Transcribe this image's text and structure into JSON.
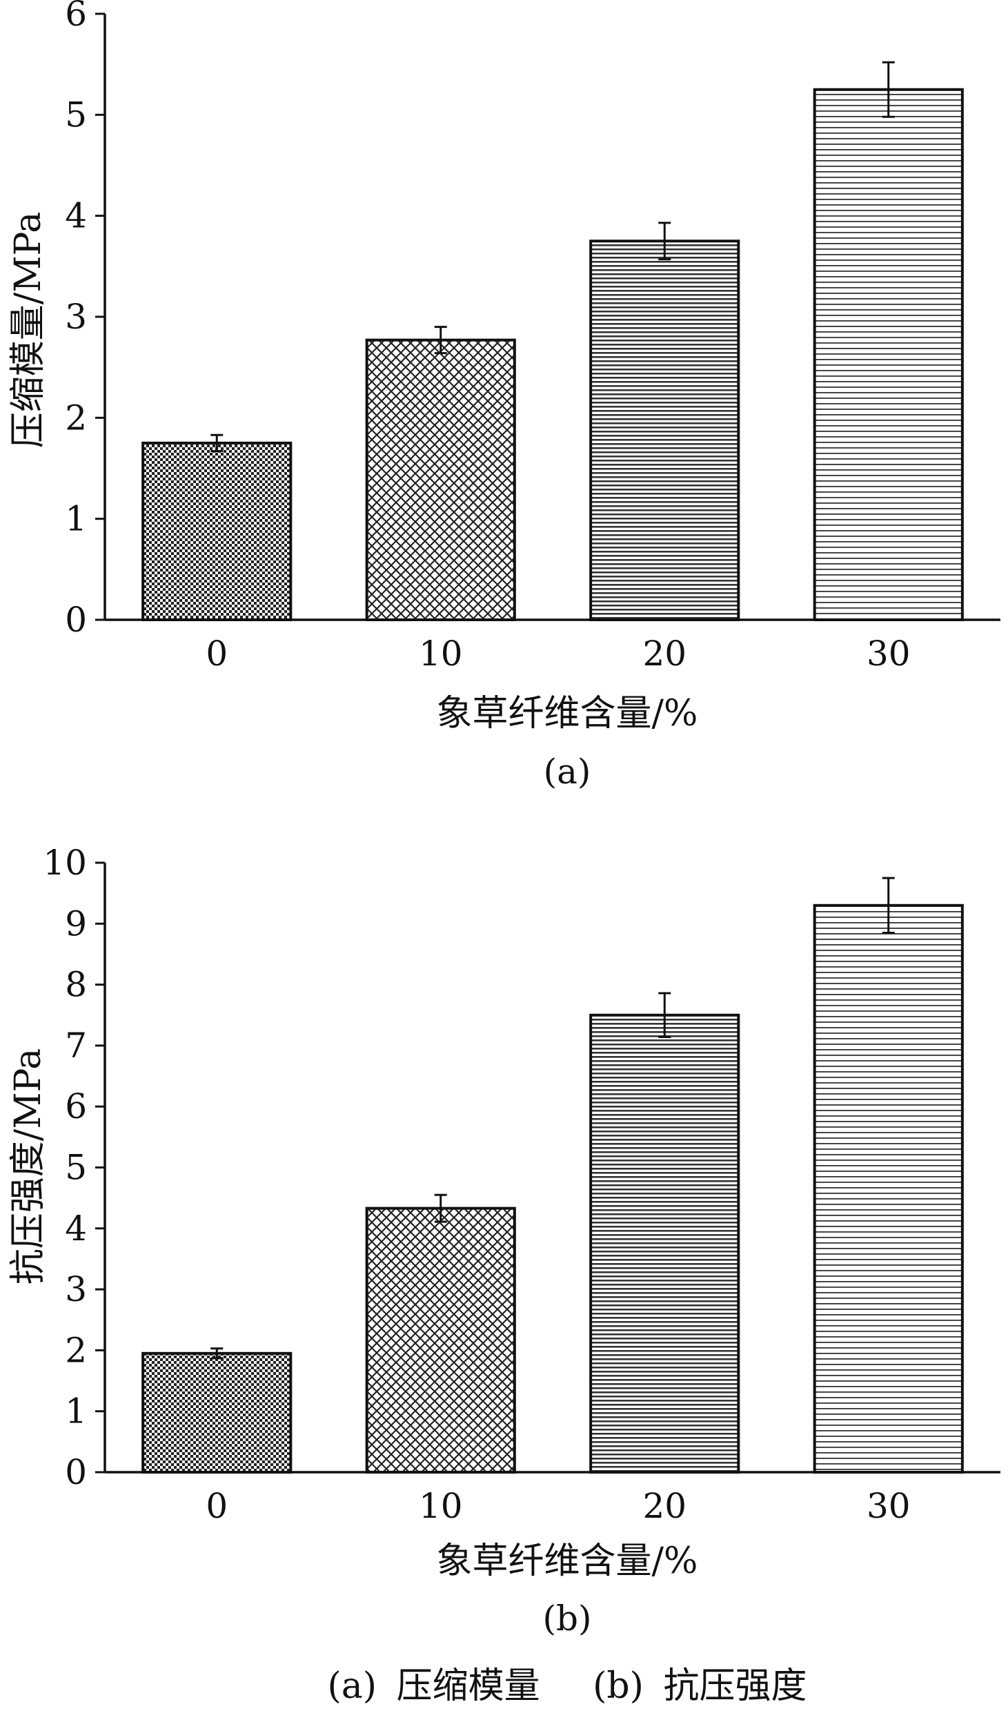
{
  "chart_data": [
    {
      "type": "bar",
      "panel_label": "(a)",
      "categories": [
        "0",
        "10",
        "20",
        "30"
      ],
      "values": [
        1.75,
        2.77,
        3.75,
        5.25
      ],
      "errors": [
        0.08,
        0.13,
        0.18,
        0.27
      ],
      "patterns": [
        "dense-checker",
        "crosshatch",
        "dense-lines",
        "fine-lines"
      ],
      "xlabel": "象草纤维含量/%",
      "ylabel": "压缩模量/MPa",
      "ylim": [
        0,
        6
      ],
      "yticks": [
        "0",
        "1",
        "2",
        "3",
        "4",
        "5",
        "6"
      ],
      "grid": false
    },
    {
      "type": "bar",
      "panel_label": "(b)",
      "categories": [
        "0",
        "10",
        "20",
        "30"
      ],
      "values": [
        1.95,
        4.33,
        7.5,
        9.3
      ],
      "errors": [
        0.08,
        0.22,
        0.36,
        0.45
      ],
      "patterns": [
        "dense-checker",
        "crosshatch",
        "dense-lines",
        "fine-lines"
      ],
      "xlabel": "象草纤维含量/%",
      "ylabel": "抗压强度/MPa",
      "ylim": [
        0,
        10
      ],
      "yticks": [
        "0",
        "1",
        "2",
        "3",
        "4",
        "5",
        "6",
        "7",
        "8",
        "9",
        "10"
      ],
      "grid": false
    }
  ],
  "caption": {
    "part_a_label": "(a)",
    "part_a_text": "压缩模量",
    "part_b_label": "(b)",
    "part_b_text": "抗压强度"
  }
}
